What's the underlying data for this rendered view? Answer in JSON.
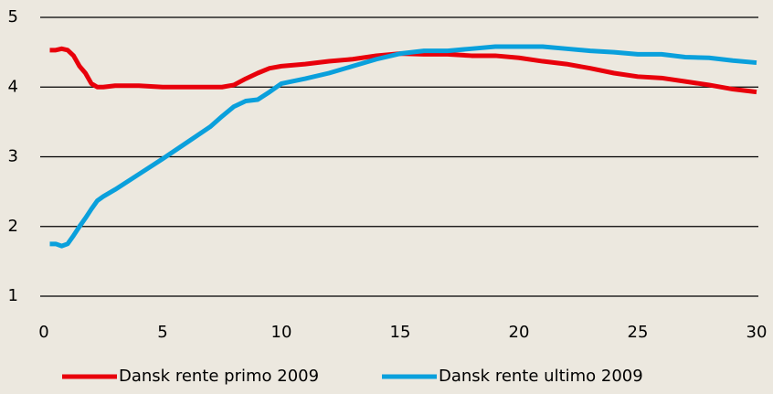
{
  "chart_data": {
    "type": "line",
    "x": [
      0.25,
      0.5,
      0.75,
      1,
      1.25,
      1.5,
      1.75,
      2,
      2.25,
      2.5,
      3,
      4,
      5,
      6,
      7,
      7.5,
      8,
      8.5,
      9,
      9.5,
      10,
      11,
      12,
      13,
      14,
      15,
      16,
      17,
      18,
      19,
      20,
      21,
      22,
      23,
      24,
      25,
      26,
      27,
      28,
      29,
      30
    ],
    "series": [
      {
        "name": "Dansk rente primo 2009",
        "color": "#e8000b",
        "values": [
          4.53,
          4.53,
          4.55,
          4.53,
          4.45,
          4.3,
          4.2,
          4.05,
          4.0,
          4.0,
          4.02,
          4.02,
          4.0,
          4.0,
          4.0,
          4.0,
          4.03,
          4.12,
          4.2,
          4.27,
          4.3,
          4.33,
          4.37,
          4.4,
          4.45,
          4.48,
          4.47,
          4.47,
          4.45,
          4.45,
          4.42,
          4.37,
          4.33,
          4.27,
          4.2,
          4.15,
          4.13,
          4.08,
          4.03,
          3.97,
          3.93
        ]
      },
      {
        "name": "Dansk rente ultimo 2009",
        "color": "#0aa0dc",
        "values": [
          1.75,
          1.75,
          1.72,
          1.75,
          1.87,
          2.0,
          2.12,
          2.25,
          2.37,
          2.43,
          2.53,
          2.75,
          2.97,
          3.2,
          3.43,
          3.58,
          3.72,
          3.8,
          3.82,
          3.93,
          4.05,
          4.12,
          4.2,
          4.3,
          4.4,
          4.48,
          4.52,
          4.52,
          4.55,
          4.58,
          4.58,
          4.58,
          4.55,
          4.52,
          4.5,
          4.47,
          4.47,
          4.43,
          4.42,
          4.38,
          4.35
        ]
      }
    ],
    "xlim": [
      0,
      30
    ],
    "xticks": [
      0,
      5,
      10,
      15,
      20,
      25,
      30
    ],
    "ylim": [
      1,
      5
    ],
    "yticks": [
      1,
      2,
      3,
      4,
      5
    ],
    "grid": true,
    "legend": "bottom"
  }
}
